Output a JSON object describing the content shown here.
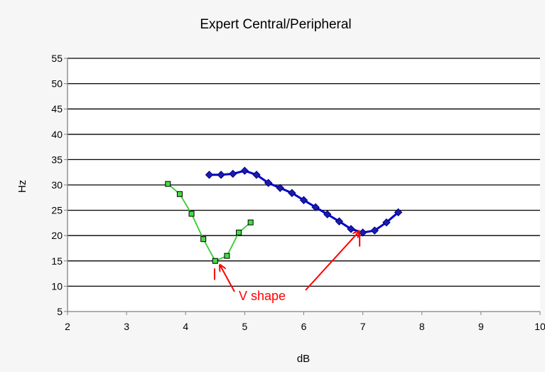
{
  "chart_data": {
    "type": "line",
    "title": "Expert Central/Peripheral",
    "xlabel": "dB",
    "ylabel": "Hz",
    "xlim": [
      2,
      10
    ],
    "ylim": [
      5,
      55
    ],
    "x_ticks": [
      2,
      3,
      4,
      5,
      6,
      7,
      8,
      9,
      10
    ],
    "y_ticks": [
      5,
      10,
      15,
      20,
      25,
      30,
      35,
      40,
      45,
      50,
      55
    ],
    "grid": "horizontal",
    "legend": "none",
    "series": [
      {
        "marker": "square",
        "line_color": "#33cc33",
        "marker_fill": "#44dd44",
        "marker_edge": "#000000",
        "points": [
          [
            3.7,
            30.2
          ],
          [
            3.9,
            28.2
          ],
          [
            4.1,
            24.3
          ],
          [
            4.3,
            19.3
          ],
          [
            4.5,
            15.0
          ],
          [
            4.7,
            16.0
          ],
          [
            4.9,
            20.6
          ],
          [
            5.1,
            22.6
          ]
        ]
      },
      {
        "marker": "diamond",
        "line_color": "#0000cc",
        "marker_fill": "#1a1ab3",
        "marker_edge": "#00007a",
        "points": [
          [
            4.4,
            32.0
          ],
          [
            4.6,
            32.0
          ],
          [
            4.8,
            32.2
          ],
          [
            5.0,
            32.8
          ],
          [
            5.2,
            32.0
          ],
          [
            5.4,
            30.4
          ],
          [
            5.6,
            29.4
          ],
          [
            5.8,
            28.4
          ],
          [
            6.0,
            27.0
          ],
          [
            6.2,
            25.6
          ],
          [
            6.4,
            24.2
          ],
          [
            6.6,
            22.8
          ],
          [
            6.8,
            21.3
          ],
          [
            7.0,
            20.6
          ],
          [
            7.2,
            21.0
          ],
          [
            7.4,
            22.6
          ],
          [
            7.6,
            24.6
          ]
        ]
      }
    ],
    "annotations": [
      {
        "text": "V shape",
        "color": "#ff0000",
        "arrow_targets": [
          [
            4.55,
            14.5
          ],
          [
            6.97,
            21.2
          ]
        ]
      }
    ]
  }
}
